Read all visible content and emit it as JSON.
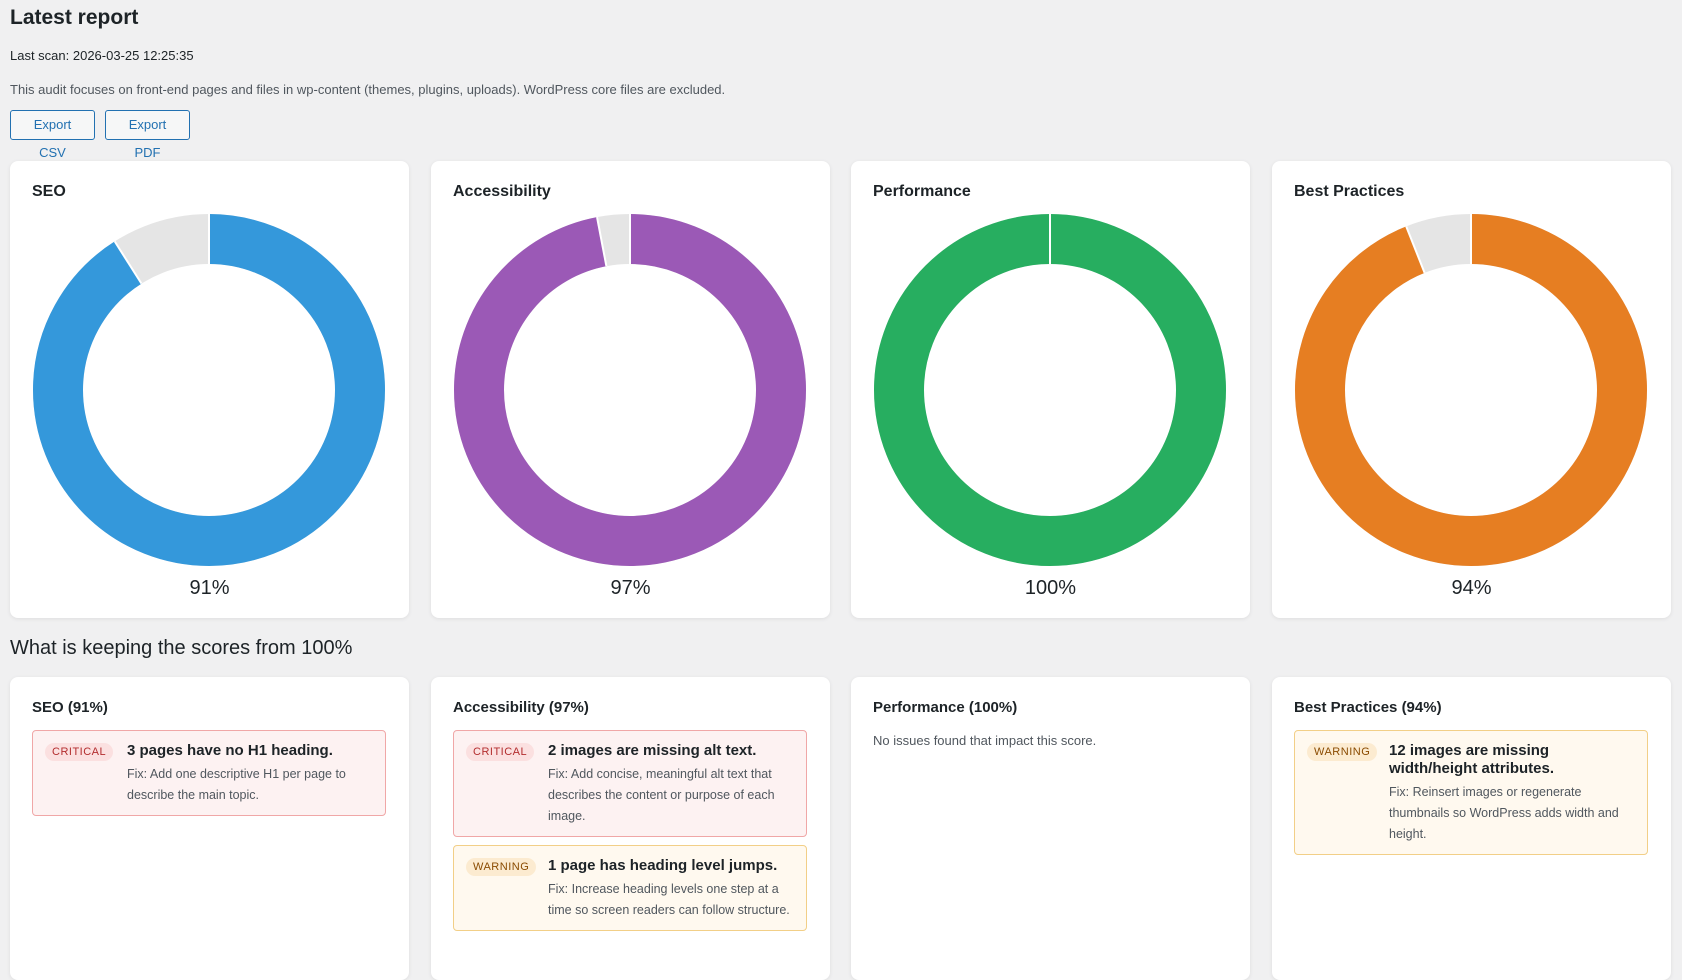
{
  "header": {
    "title": "Latest report",
    "last_scan": "Last scan: 2026-03-25 12:25:35",
    "intro": "This audit focuses on front-end pages and files in wp-content (themes, plugins, uploads). WordPress core files are excluded.",
    "export_csv": "Export CSV",
    "export_pdf": "Export PDF"
  },
  "scores": [
    {
      "label": "SEO",
      "value": 91,
      "value_label": "91%",
      "color": "#3498db"
    },
    {
      "label": "Accessibility",
      "value": 97,
      "value_label": "97%",
      "color": "#9b59b6"
    },
    {
      "label": "Performance",
      "value": 100,
      "value_label": "100%",
      "color": "#27ae60"
    },
    {
      "label": "Best Practices",
      "value": 94,
      "value_label": "94%",
      "color": "#e67e22"
    }
  ],
  "remainder_color": "#e5e5e5",
  "chart_data": [
    {
      "type": "pie",
      "title": "SEO",
      "categories": [
        "",
        ""
      ],
      "values": [
        91,
        9
      ]
    },
    {
      "type": "pie",
      "title": "Accessibility",
      "categories": [
        "",
        ""
      ],
      "values": [
        97,
        3
      ]
    },
    {
      "type": "pie",
      "title": "Performance",
      "categories": [
        "",
        ""
      ],
      "values": [
        100,
        0
      ]
    },
    {
      "type": "pie",
      "title": "Best Practices",
      "categories": [
        "",
        ""
      ],
      "values": [
        94,
        6
      ]
    }
  ],
  "issues_section": {
    "heading": "What is keeping the scores from 100%",
    "cards": [
      {
        "title": "SEO (91%)",
        "no_issues": "",
        "issues": [
          {
            "severity": "critical",
            "badge": "CRITICAL",
            "title": "3 pages have no H1 heading.",
            "fix": "Fix: Add one descriptive H1 per page to describe the main topic."
          }
        ]
      },
      {
        "title": "Accessibility (97%)",
        "no_issues": "",
        "issues": [
          {
            "severity": "critical",
            "badge": "CRITICAL",
            "title": "2 images are missing alt text.",
            "fix": "Fix: Add concise, meaningful alt text that describes the content or purpose of each image."
          },
          {
            "severity": "warning",
            "badge": "WARNING",
            "title": "1 page has heading level jumps.",
            "fix": "Fix: Increase heading levels one step at a time so screen readers can follow structure."
          }
        ]
      },
      {
        "title": "Performance (100%)",
        "no_issues": "No issues found that impact this score.",
        "issues": []
      },
      {
        "title": "Best Practices (94%)",
        "no_issues": "",
        "issues": [
          {
            "severity": "warning",
            "badge": "WARNING",
            "title": "12 images are missing width/height attributes.",
            "fix": "Fix: Reinsert images or regenerate thumbnails so WordPress adds width and height."
          }
        ]
      }
    ]
  }
}
